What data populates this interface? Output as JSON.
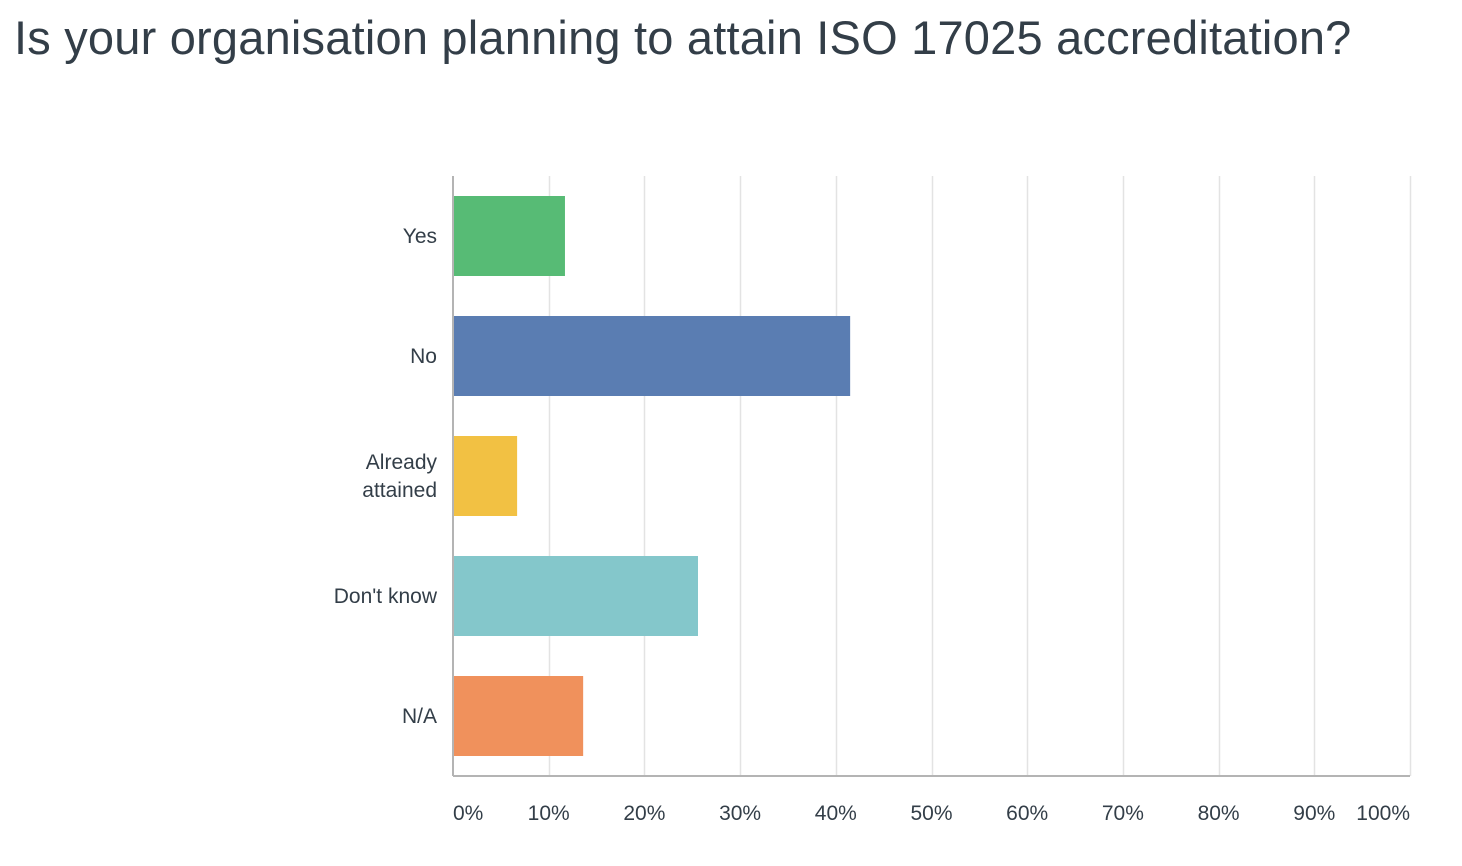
{
  "question": {
    "title": "Is your organisation planning to attain ISO 17025 accreditation?"
  },
  "chart_data": {
    "type": "bar",
    "orientation": "horizontal",
    "title": "Is your organisation planning to attain ISO 17025 accreditation?",
    "categories": [
      [
        "Yes"
      ],
      [
        "No"
      ],
      [
        "Already",
        "attained"
      ],
      [
        "Don't know"
      ],
      [
        "N/A"
      ]
    ],
    "values": [
      11.7,
      41.5,
      6.7,
      25.6,
      13.6
    ],
    "colors": [
      "#57bb75",
      "#5a7db2",
      "#f2c143",
      "#84c7cb",
      "#f0915c"
    ],
    "xlim": [
      0,
      100
    ],
    "xticks": [
      0,
      10,
      20,
      30,
      40,
      50,
      60,
      70,
      80,
      90,
      100
    ],
    "xtick_labels": [
      "0%",
      "10%",
      "20%",
      "30%",
      "40%",
      "50%",
      "60%",
      "70%",
      "80%",
      "90%",
      "100%"
    ],
    "grid": true,
    "legend": "none",
    "xlabel": "",
    "ylabel": ""
  }
}
